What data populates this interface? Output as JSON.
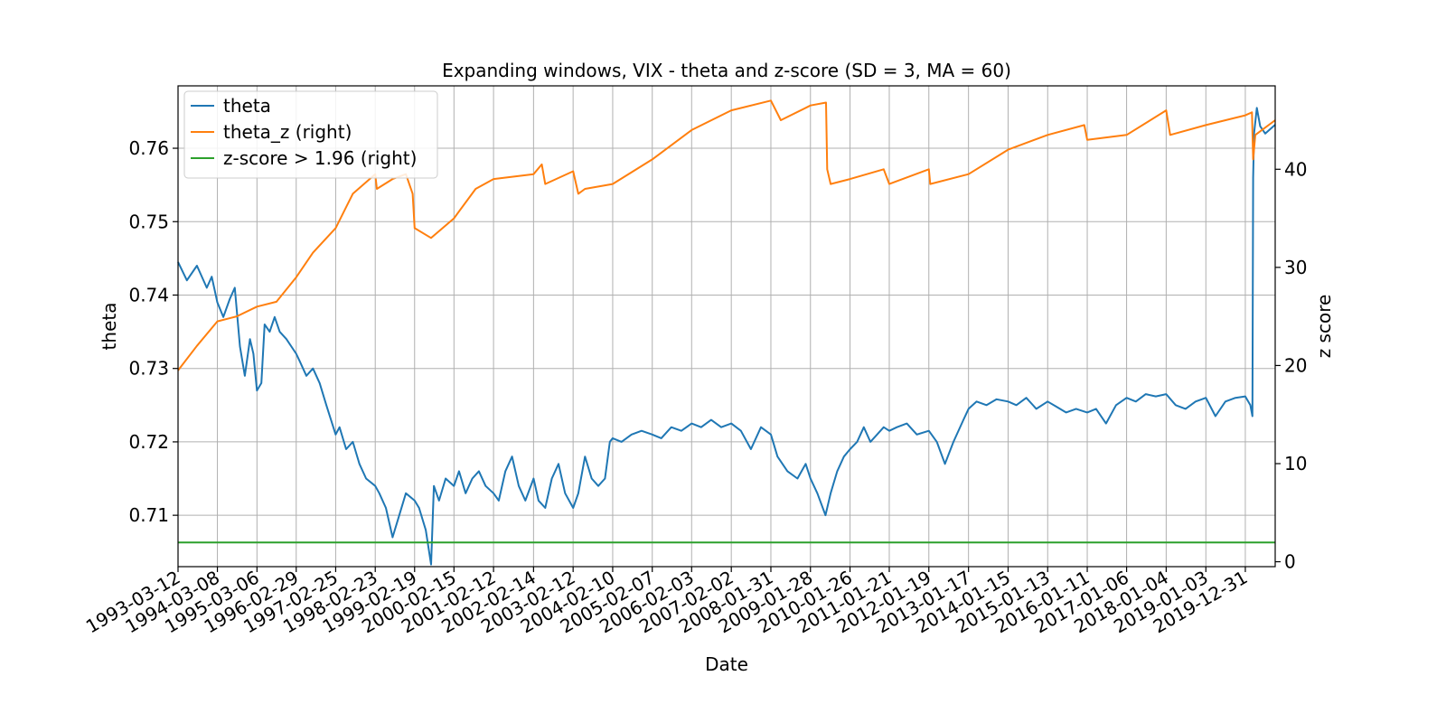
{
  "chart_data": {
    "type": "line",
    "title": "Expanding windows, VIX - theta and z-score (SD = 3, MA = 60)",
    "xlabel": "Date",
    "ylabel": "theta",
    "y2label": "z score",
    "grid": true,
    "legend_position": "upper-left",
    "x_range": [
      "1993-03-12",
      "2020-09-30"
    ],
    "ylim": [
      0.703,
      0.7685
    ],
    "y2lim": [
      -0.5,
      48.5
    ],
    "x_ticks": [
      "1993-03-12",
      "1994-03-08",
      "1995-03-06",
      "1996-02-29",
      "1997-02-25",
      "1998-02-23",
      "1999-02-19",
      "2000-02-15",
      "2001-02-12",
      "2002-02-14",
      "2003-02-12",
      "2004-02-10",
      "2005-02-07",
      "2006-02-03",
      "2007-02-02",
      "2008-01-31",
      "2009-01-28",
      "2010-01-26",
      "2011-01-21",
      "2012-01-19",
      "2013-01-17",
      "2014-01-15",
      "2015-01-13",
      "2016-01-11",
      "2017-01-06",
      "2018-01-04",
      "2019-01-03",
      "2019-12-31"
    ],
    "y_ticks": [
      0.71,
      0.72,
      0.73,
      0.74,
      0.75,
      0.76
    ],
    "y_tick_labels": [
      "0.71",
      "0.72",
      "0.73",
      "0.74",
      "0.75",
      "0.76"
    ],
    "y2_ticks": [
      0,
      10,
      20,
      30,
      40
    ],
    "y2_tick_labels": [
      "0",
      "10",
      "20",
      "30",
      "40"
    ],
    "series": [
      {
        "name": "theta",
        "axis": "left",
        "color": "#1f77b4",
        "points": [
          [
            "1993-03-12",
            0.7445
          ],
          [
            "1993-06-01",
            0.742
          ],
          [
            "1993-09-01",
            0.744
          ],
          [
            "1993-12-01",
            0.741
          ],
          [
            "1994-01-15",
            0.7425
          ],
          [
            "1994-03-08",
            0.739
          ],
          [
            "1994-05-01",
            0.737
          ],
          [
            "1994-07-01",
            0.7395
          ],
          [
            "1994-08-15",
            0.741
          ],
          [
            "1994-10-01",
            0.733
          ],
          [
            "1994-11-15",
            0.729
          ],
          [
            "1995-01-01",
            0.734
          ],
          [
            "1995-02-01",
            0.732
          ],
          [
            "1995-03-06",
            0.727
          ],
          [
            "1995-04-15",
            0.728
          ],
          [
            "1995-05-15",
            0.736
          ],
          [
            "1995-07-01",
            0.735
          ],
          [
            "1995-08-15",
            0.737
          ],
          [
            "1995-10-01",
            0.735
          ],
          [
            "1995-12-01",
            0.734
          ],
          [
            "1996-02-29",
            0.732
          ],
          [
            "1996-04-01",
            0.731
          ],
          [
            "1996-06-01",
            0.729
          ],
          [
            "1996-08-01",
            0.73
          ],
          [
            "1996-10-01",
            0.728
          ],
          [
            "1996-12-01",
            0.725
          ],
          [
            "1997-02-25",
            0.721
          ],
          [
            "1997-04-01",
            0.722
          ],
          [
            "1997-06-01",
            0.719
          ],
          [
            "1997-08-01",
            0.72
          ],
          [
            "1997-10-01",
            0.717
          ],
          [
            "1997-12-01",
            0.715
          ],
          [
            "1998-02-23",
            0.714
          ],
          [
            "1998-04-01",
            0.713
          ],
          [
            "1998-06-01",
            0.711
          ],
          [
            "1998-08-01",
            0.707
          ],
          [
            "1998-10-01",
            0.71
          ],
          [
            "1998-12-01",
            0.713
          ],
          [
            "1999-02-19",
            0.712
          ],
          [
            "1999-04-01",
            0.711
          ],
          [
            "1999-06-01",
            0.708
          ],
          [
            "1999-07-20",
            0.7033
          ],
          [
            "1999-08-15",
            0.714
          ],
          [
            "1999-10-01",
            0.712
          ],
          [
            "1999-12-01",
            0.715
          ],
          [
            "2000-02-15",
            0.714
          ],
          [
            "2000-04-01",
            0.716
          ],
          [
            "2000-06-01",
            0.713
          ],
          [
            "2000-08-01",
            0.715
          ],
          [
            "2000-10-01",
            0.716
          ],
          [
            "2000-12-01",
            0.714
          ],
          [
            "2001-02-12",
            0.713
          ],
          [
            "2001-04-01",
            0.712
          ],
          [
            "2001-06-01",
            0.716
          ],
          [
            "2001-08-01",
            0.718
          ],
          [
            "2001-10-01",
            0.714
          ],
          [
            "2001-12-01",
            0.712
          ],
          [
            "2002-02-14",
            0.715
          ],
          [
            "2002-04-01",
            0.712
          ],
          [
            "2002-06-01",
            0.711
          ],
          [
            "2002-08-01",
            0.715
          ],
          [
            "2002-10-01",
            0.717
          ],
          [
            "2002-12-01",
            0.713
          ],
          [
            "2003-02-12",
            0.711
          ],
          [
            "2003-04-01",
            0.713
          ],
          [
            "2003-06-01",
            0.718
          ],
          [
            "2003-08-01",
            0.715
          ],
          [
            "2003-10-01",
            0.714
          ],
          [
            "2003-12-01",
            0.715
          ],
          [
            "2004-01-15",
            0.72
          ],
          [
            "2004-02-10",
            0.7205
          ],
          [
            "2004-05-01",
            0.72
          ],
          [
            "2004-08-01",
            0.721
          ],
          [
            "2004-11-01",
            0.7215
          ],
          [
            "2005-02-07",
            0.721
          ],
          [
            "2005-05-01",
            0.7205
          ],
          [
            "2005-08-01",
            0.722
          ],
          [
            "2005-11-01",
            0.7215
          ],
          [
            "2006-02-03",
            0.7225
          ],
          [
            "2006-05-01",
            0.722
          ],
          [
            "2006-08-01",
            0.723
          ],
          [
            "2006-11-01",
            0.722
          ],
          [
            "2007-02-02",
            0.7225
          ],
          [
            "2007-05-01",
            0.7215
          ],
          [
            "2007-08-01",
            0.719
          ],
          [
            "2007-11-01",
            0.722
          ],
          [
            "2008-01-31",
            0.721
          ],
          [
            "2008-04-01",
            0.718
          ],
          [
            "2008-07-01",
            0.716
          ],
          [
            "2008-10-01",
            0.715
          ],
          [
            "2008-12-15",
            0.717
          ],
          [
            "2009-01-28",
            0.715
          ],
          [
            "2009-04-01",
            0.713
          ],
          [
            "2009-06-15",
            0.71
          ],
          [
            "2009-08-01",
            0.713
          ],
          [
            "2009-10-01",
            0.716
          ],
          [
            "2009-12-01",
            0.718
          ],
          [
            "2010-01-26",
            0.719
          ],
          [
            "2010-04-01",
            0.72
          ],
          [
            "2010-06-01",
            0.722
          ],
          [
            "2010-08-01",
            0.72
          ],
          [
            "2010-10-01",
            0.721
          ],
          [
            "2010-12-01",
            0.722
          ],
          [
            "2011-01-21",
            0.7215
          ],
          [
            "2011-04-01",
            0.722
          ],
          [
            "2011-07-01",
            0.7225
          ],
          [
            "2011-10-01",
            0.721
          ],
          [
            "2012-01-19",
            0.7215
          ],
          [
            "2012-04-01",
            0.72
          ],
          [
            "2012-06-15",
            0.717
          ],
          [
            "2012-09-01",
            0.72
          ],
          [
            "2012-12-01",
            0.723
          ],
          [
            "2013-01-17",
            0.7245
          ],
          [
            "2013-04-01",
            0.7255
          ],
          [
            "2013-07-01",
            0.725
          ],
          [
            "2013-10-01",
            0.7258
          ],
          [
            "2014-01-15",
            0.7255
          ],
          [
            "2014-04-01",
            0.725
          ],
          [
            "2014-07-01",
            0.726
          ],
          [
            "2014-10-01",
            0.7245
          ],
          [
            "2015-01-13",
            0.7255
          ],
          [
            "2015-04-01",
            0.7248
          ],
          [
            "2015-07-01",
            0.724
          ],
          [
            "2015-10-01",
            0.7245
          ],
          [
            "2016-01-11",
            0.724
          ],
          [
            "2016-04-01",
            0.7245
          ],
          [
            "2016-07-01",
            0.7225
          ],
          [
            "2016-10-01",
            0.725
          ],
          [
            "2017-01-06",
            0.726
          ],
          [
            "2017-04-01",
            0.7255
          ],
          [
            "2017-07-01",
            0.7265
          ],
          [
            "2017-10-01",
            0.7262
          ],
          [
            "2018-01-04",
            0.7265
          ],
          [
            "2018-04-01",
            0.725
          ],
          [
            "2018-07-01",
            0.7245
          ],
          [
            "2018-10-01",
            0.7255
          ],
          [
            "2019-01-03",
            0.726
          ],
          [
            "2019-04-01",
            0.7235
          ],
          [
            "2019-07-01",
            0.7255
          ],
          [
            "2019-10-01",
            0.726
          ],
          [
            "2019-12-31",
            0.7262
          ],
          [
            "2020-02-15",
            0.725
          ],
          [
            "2020-03-05",
            0.7235
          ],
          [
            "2020-03-12",
            0.756
          ],
          [
            "2020-03-20",
            0.762
          ],
          [
            "2020-04-15",
            0.7655
          ],
          [
            "2020-05-15",
            0.763
          ],
          [
            "2020-07-01",
            0.762
          ],
          [
            "2020-09-30",
            0.7632
          ]
        ]
      },
      {
        "name": "theta_z (right)",
        "axis": "right",
        "color": "#ff7f0e",
        "points": [
          [
            "1993-03-12",
            19.5
          ],
          [
            "1993-09-01",
            22.0
          ],
          [
            "1994-03-08",
            24.5
          ],
          [
            "1994-09-01",
            25.0
          ],
          [
            "1995-03-06",
            26.0
          ],
          [
            "1995-09-01",
            26.5
          ],
          [
            "1996-02-29",
            29.0
          ],
          [
            "1996-08-01",
            31.5
          ],
          [
            "1997-02-25",
            34.0
          ],
          [
            "1997-08-01",
            37.5
          ],
          [
            "1998-02-23",
            39.5
          ],
          [
            "1998-03-10",
            38.0
          ],
          [
            "1998-08-01",
            39.0
          ],
          [
            "1998-12-01",
            39.5
          ],
          [
            "1999-02-01",
            37.5
          ],
          [
            "1999-02-19",
            34.0
          ],
          [
            "1999-07-20",
            33.0
          ],
          [
            "2000-02-15",
            35.0
          ],
          [
            "2000-09-01",
            38.0
          ],
          [
            "2001-02-12",
            39.0
          ],
          [
            "2002-02-14",
            39.5
          ],
          [
            "2002-05-01",
            40.5
          ],
          [
            "2002-06-01",
            38.5
          ],
          [
            "2003-02-12",
            39.8
          ],
          [
            "2003-04-01",
            37.5
          ],
          [
            "2003-06-01",
            38.0
          ],
          [
            "2004-02-10",
            38.5
          ],
          [
            "2005-02-07",
            41.0
          ],
          [
            "2006-02-03",
            44.0
          ],
          [
            "2007-02-02",
            46.0
          ],
          [
            "2008-01-31",
            47.0
          ],
          [
            "2008-05-01",
            45.0
          ],
          [
            "2009-01-28",
            46.5
          ],
          [
            "2009-06-20",
            46.8
          ],
          [
            "2009-07-01",
            40.0
          ],
          [
            "2009-08-01",
            38.5
          ],
          [
            "2010-01-26",
            39.0
          ],
          [
            "2010-12-01",
            40.0
          ],
          [
            "2011-01-21",
            38.5
          ],
          [
            "2012-01-19",
            40.0
          ],
          [
            "2012-02-01",
            38.5
          ],
          [
            "2013-01-17",
            39.5
          ],
          [
            "2014-01-15",
            42.0
          ],
          [
            "2015-01-13",
            43.5
          ],
          [
            "2015-12-15",
            44.5
          ],
          [
            "2016-01-11",
            43.0
          ],
          [
            "2017-01-06",
            43.5
          ],
          [
            "2018-01-04",
            46.0
          ],
          [
            "2018-02-10",
            43.5
          ],
          [
            "2019-01-03",
            44.5
          ],
          [
            "2019-12-31",
            45.5
          ],
          [
            "2020-03-01",
            45.8
          ],
          [
            "2020-03-12",
            41.0
          ],
          [
            "2020-04-01",
            43.5
          ],
          [
            "2020-09-30",
            45.0
          ]
        ]
      },
      {
        "name": "z-score > 1.96 (right)",
        "axis": "right",
        "color": "#2ca02c",
        "points": [
          [
            "1993-03-12",
            1.96
          ],
          [
            "2020-09-30",
            1.96
          ]
        ]
      }
    ]
  }
}
